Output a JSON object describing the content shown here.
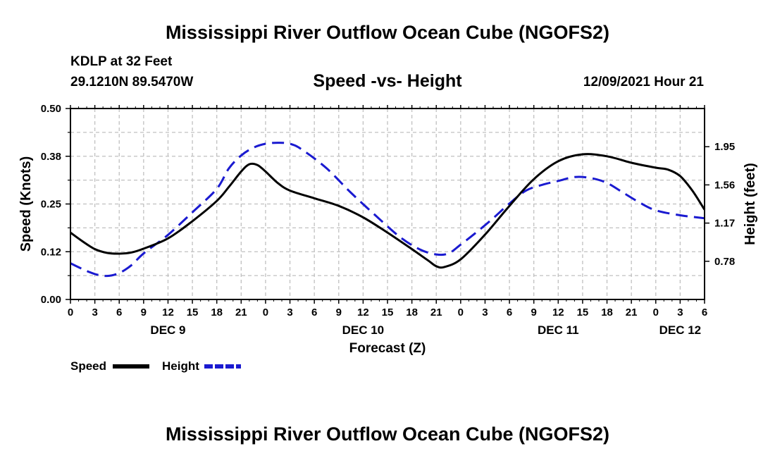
{
  "title": "Mississippi River Outflow Ocean Cube (NGOFS2)",
  "station": {
    "name": "KDLP at 32 Feet",
    "coords": "29.1210N  89.5470W"
  },
  "datetime": "12/09/2021 Hour 21",
  "footer_title": "Mississippi River Outflow Ocean Cube (NGOFS2)",
  "colors": {
    "speed": "#000000",
    "height": "#1a1ad0",
    "grid": "#c0c0c0"
  },
  "chart_data": {
    "type": "line",
    "title": "Speed -vs- Height",
    "xlabel": "Forecast (Z)",
    "ylabel": "Speed (Knots)",
    "y2label": "Height (feet)",
    "xlim": [
      0,
      78
    ],
    "ylim": [
      0,
      0.5
    ],
    "y2lim": [
      0.39,
      2.34
    ],
    "x_ticks": [
      0,
      3,
      6,
      9,
      12,
      15,
      18,
      21,
      24,
      27,
      30,
      33,
      36,
      39,
      42,
      45,
      48,
      51,
      54,
      57,
      60,
      63,
      66,
      69,
      72,
      75,
      78
    ],
    "x_tick_labels": [
      "0",
      "3",
      "6",
      "9",
      "12",
      "15",
      "18",
      "21",
      "0",
      "3",
      "6",
      "9",
      "12",
      "15",
      "18",
      "21",
      "0",
      "3",
      "6",
      "9",
      "12",
      "15",
      "18",
      "21",
      "0",
      "3",
      "6"
    ],
    "y_ticks": [
      0,
      0.125,
      0.25,
      0.375,
      0.5
    ],
    "y_tick_labels": [
      "0.00",
      "0.12",
      "0.25",
      "0.38",
      "0.50"
    ],
    "y2_ticks": [
      0.78,
      1.17,
      1.56,
      1.95
    ],
    "y2_tick_labels": [
      "0.78",
      "1.17",
      "1.56",
      "1.95"
    ],
    "day_labels": [
      {
        "x": 12,
        "label": "DEC 9"
      },
      {
        "x": 36,
        "label": "DEC 10"
      },
      {
        "x": 60,
        "label": "DEC 11"
      },
      {
        "x": 75,
        "label": "DEC 12"
      }
    ],
    "series": [
      {
        "name": "Speed",
        "axis": "left",
        "x": [
          0,
          1.5,
          3,
          4.5,
          6,
          7.5,
          9,
          12,
          15,
          18,
          19.5,
          21,
          22,
          23,
          24,
          25.5,
          27,
          30,
          33,
          36,
          39,
          42,
          44,
          45,
          46,
          48,
          51,
          54,
          57,
          60,
          63,
          66,
          69,
          72,
          73.5,
          75,
          76.5,
          78
        ],
        "values": [
          0.175,
          0.152,
          0.132,
          0.122,
          0.12,
          0.123,
          0.133,
          0.16,
          0.205,
          0.258,
          0.295,
          0.335,
          0.354,
          0.352,
          0.335,
          0.305,
          0.285,
          0.265,
          0.245,
          0.215,
          0.175,
          0.132,
          0.102,
          0.087,
          0.085,
          0.105,
          0.17,
          0.245,
          0.315,
          0.362,
          0.38,
          0.375,
          0.358,
          0.345,
          0.34,
          0.323,
          0.285,
          0.235
        ]
      },
      {
        "name": "Height",
        "axis": "right",
        "values": [
          0.76,
          0.7,
          0.65,
          0.63,
          0.66,
          0.74,
          0.86,
          1.05,
          1.28,
          1.52,
          1.73,
          1.86,
          1.94,
          1.98,
          1.99,
          1.98,
          1.92,
          1.73,
          1.48,
          1.25,
          1.03,
          0.9,
          0.85,
          0.86,
          0.95,
          1.08,
          1.22,
          1.37,
          1.5,
          1.56,
          1.6,
          1.64,
          1.63,
          1.58,
          1.48,
          1.38,
          1.3,
          1.25,
          1.22
        ],
        "x": [
          0,
          1.5,
          3,
          4.5,
          6,
          7.5,
          9,
          12,
          15,
          18,
          19.5,
          21,
          22.5,
          24,
          25.5,
          27,
          28.5,
          31.5,
          34.5,
          37.5,
          40.5,
          43,
          45,
          46.5,
          48,
          50,
          52,
          54,
          56,
          58,
          60,
          62,
          64,
          66,
          68,
          70,
          72,
          75,
          78
        ]
      }
    ],
    "legend": {
      "placement": "bottom-left",
      "entries": [
        "Speed",
        "Height"
      ]
    }
  }
}
